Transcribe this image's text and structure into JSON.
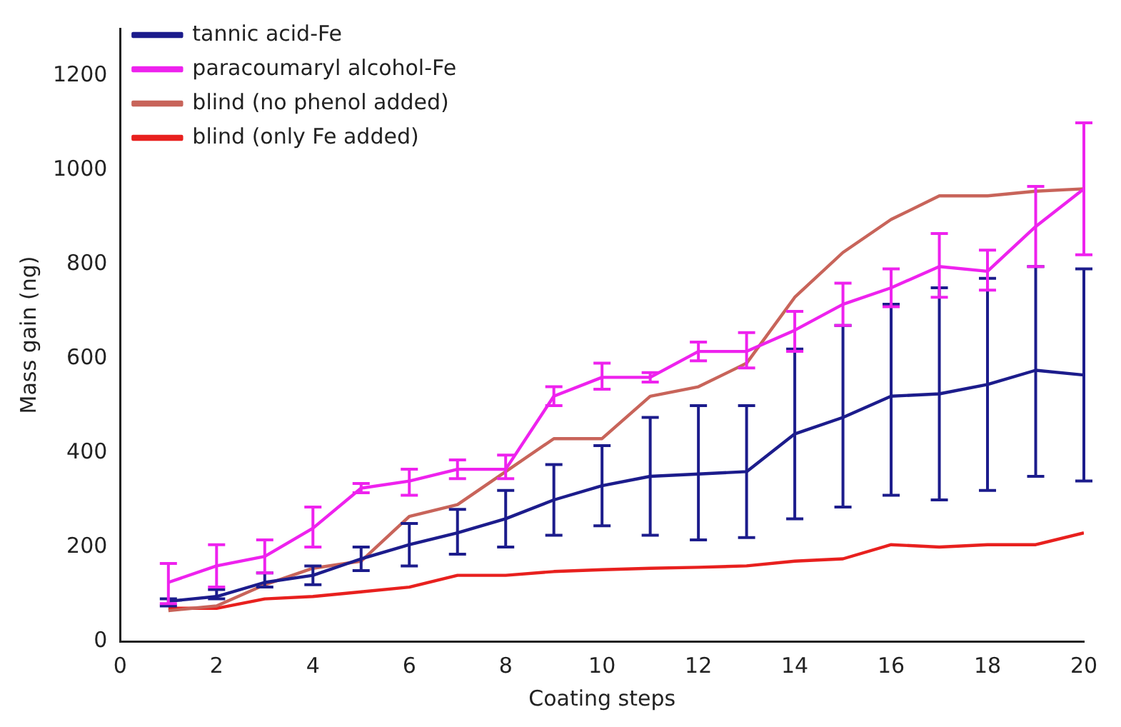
{
  "chart_data": {
    "type": "line",
    "xlabel": "Coating steps",
    "ylabel": "Mass gain (ng)",
    "x": [
      1,
      2,
      3,
      4,
      5,
      6,
      7,
      8,
      9,
      10,
      11,
      12,
      13,
      14,
      15,
      16,
      17,
      18,
      19,
      20
    ],
    "series": [
      {
        "name": "tannic acid-Fe",
        "color": "#1c1c8c",
        "values": [
          85,
          95,
          125,
          140,
          175,
          205,
          230,
          260,
          300,
          330,
          350,
          355,
          360,
          440,
          475,
          520,
          525,
          545,
          575,
          565
        ],
        "errors": [
          [
            75,
            90
          ],
          [
            90,
            110
          ],
          [
            115,
            145
          ],
          [
            120,
            160
          ],
          [
            150,
            200
          ],
          [
            160,
            250
          ],
          [
            185,
            280
          ],
          [
            200,
            320
          ],
          [
            225,
            375
          ],
          [
            245,
            415
          ],
          [
            225,
            475
          ],
          [
            215,
            500
          ],
          [
            220,
            500
          ],
          [
            260,
            620
          ],
          [
            285,
            670
          ],
          [
            310,
            715
          ],
          [
            300,
            750
          ],
          [
            320,
            770
          ],
          [
            350,
            795
          ],
          [
            340,
            790
          ]
        ]
      },
      {
        "name": "paracoumaryl alcohol-Fe",
        "color": "#ee22ee",
        "values": [
          125,
          160,
          180,
          240,
          325,
          340,
          365,
          365,
          520,
          560,
          560,
          615,
          615,
          660,
          715,
          750,
          795,
          785,
          880,
          960
        ],
        "errors": [
          [
            80,
            165
          ],
          [
            115,
            205
          ],
          [
            145,
            215
          ],
          [
            200,
            285
          ],
          [
            315,
            335
          ],
          [
            310,
            365
          ],
          [
            345,
            385
          ],
          [
            345,
            395
          ],
          [
            500,
            540
          ],
          [
            535,
            590
          ],
          [
            550,
            570
          ],
          [
            595,
            635
          ],
          [
            580,
            655
          ],
          [
            615,
            700
          ],
          [
            670,
            760
          ],
          [
            710,
            790
          ],
          [
            730,
            865
          ],
          [
            745,
            830
          ],
          [
            795,
            965
          ],
          [
            820,
            1100
          ]
        ]
      },
      {
        "name": "blind (no phenol added)",
        "color": "#c8645a",
        "values": [
          65,
          75,
          120,
          155,
          170,
          265,
          290,
          360,
          430,
          430,
          520,
          540,
          590,
          730,
          825,
          895,
          945,
          945,
          955,
          960
        ]
      },
      {
        "name": "blind (only Fe added)",
        "color": "#e8201e",
        "values": [
          70,
          70,
          90,
          95,
          105,
          115,
          140,
          140,
          148,
          152,
          155,
          157,
          160,
          170,
          175,
          205,
          200,
          205,
          205,
          230
        ]
      }
    ],
    "xlim": [
      0,
      20
    ],
    "xticks": [
      0,
      2,
      4,
      6,
      8,
      10,
      12,
      14,
      16,
      18,
      20
    ],
    "ylim": [
      0,
      1300
    ],
    "yticks": [
      0,
      200,
      400,
      600,
      800,
      1000,
      1200
    ],
    "grid": false,
    "legend": "top left",
    "marker": "none",
    "line_style": "solid"
  }
}
